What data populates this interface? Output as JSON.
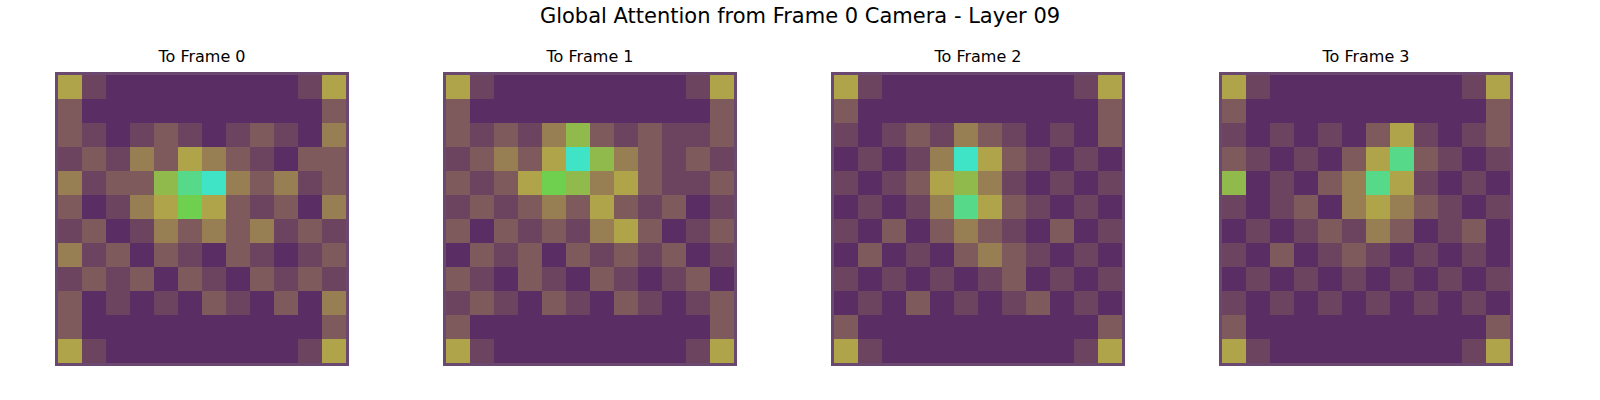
{
  "chart_data": {
    "type": "heatmap",
    "title": "Global Attention from Frame 0 Camera - Layer 09",
    "tick_labels": false,
    "panels": [
      {
        "title": "To Frame 0",
        "cells": [
          [
            0.5,
            0.2,
            0.1,
            0.1,
            0.1,
            0.1,
            0.1,
            0.1,
            0.1,
            0.1,
            0.2,
            0.5
          ],
          [
            0.3,
            0.1,
            0.1,
            0.1,
            0.1,
            0.1,
            0.1,
            0.1,
            0.1,
            0.1,
            0.1,
            0.3
          ],
          [
            0.3,
            0.2,
            0.1,
            0.2,
            0.3,
            0.2,
            0.1,
            0.2,
            0.3,
            0.2,
            0.1,
            0.4
          ],
          [
            0.2,
            0.3,
            0.2,
            0.4,
            0.3,
            0.5,
            0.4,
            0.3,
            0.2,
            0.1,
            0.3,
            0.3
          ],
          [
            0.4,
            0.2,
            0.3,
            0.3,
            0.6,
            0.8,
            0.9,
            0.4,
            0.3,
            0.4,
            0.2,
            0.3
          ],
          [
            0.3,
            0.1,
            0.2,
            0.4,
            0.5,
            0.7,
            0.5,
            0.3,
            0.2,
            0.3,
            0.1,
            0.4
          ],
          [
            0.2,
            0.3,
            0.1,
            0.2,
            0.4,
            0.3,
            0.4,
            0.3,
            0.4,
            0.2,
            0.3,
            0.2
          ],
          [
            0.4,
            0.2,
            0.3,
            0.1,
            0.3,
            0.2,
            0.1,
            0.3,
            0.2,
            0.1,
            0.2,
            0.3
          ],
          [
            0.2,
            0.3,
            0.2,
            0.3,
            0.1,
            0.3,
            0.2,
            0.1,
            0.3,
            0.2,
            0.3,
            0.2
          ],
          [
            0.3,
            0.1,
            0.2,
            0.1,
            0.2,
            0.1,
            0.3,
            0.2,
            0.1,
            0.3,
            0.1,
            0.4
          ],
          [
            0.3,
            0.1,
            0.1,
            0.1,
            0.1,
            0.1,
            0.1,
            0.1,
            0.1,
            0.1,
            0.1,
            0.3
          ],
          [
            0.5,
            0.2,
            0.1,
            0.1,
            0.1,
            0.1,
            0.1,
            0.1,
            0.1,
            0.1,
            0.2,
            0.5
          ]
        ]
      },
      {
        "title": "To Frame 1",
        "cells": [
          [
            0.5,
            0.2,
            0.1,
            0.1,
            0.1,
            0.1,
            0.1,
            0.1,
            0.1,
            0.1,
            0.2,
            0.5
          ],
          [
            0.3,
            0.1,
            0.1,
            0.1,
            0.1,
            0.1,
            0.1,
            0.1,
            0.1,
            0.1,
            0.1,
            0.3
          ],
          [
            0.3,
            0.2,
            0.3,
            0.2,
            0.4,
            0.6,
            0.3,
            0.2,
            0.3,
            0.2,
            0.2,
            0.3
          ],
          [
            0.2,
            0.3,
            0.4,
            0.3,
            0.5,
            0.9,
            0.6,
            0.4,
            0.3,
            0.2,
            0.3,
            0.2
          ],
          [
            0.3,
            0.2,
            0.3,
            0.5,
            0.7,
            0.6,
            0.4,
            0.5,
            0.3,
            0.2,
            0.2,
            0.3
          ],
          [
            0.2,
            0.3,
            0.2,
            0.3,
            0.4,
            0.3,
            0.5,
            0.3,
            0.2,
            0.3,
            0.1,
            0.2
          ],
          [
            0.3,
            0.1,
            0.3,
            0.2,
            0.3,
            0.2,
            0.4,
            0.5,
            0.3,
            0.1,
            0.2,
            0.3
          ],
          [
            0.1,
            0.3,
            0.2,
            0.3,
            0.1,
            0.3,
            0.2,
            0.3,
            0.2,
            0.3,
            0.1,
            0.2
          ],
          [
            0.3,
            0.2,
            0.1,
            0.3,
            0.2,
            0.1,
            0.3,
            0.2,
            0.1,
            0.2,
            0.3,
            0.1
          ],
          [
            0.2,
            0.3,
            0.2,
            0.1,
            0.3,
            0.2,
            0.1,
            0.3,
            0.2,
            0.1,
            0.2,
            0.3
          ],
          [
            0.3,
            0.1,
            0.1,
            0.1,
            0.1,
            0.1,
            0.1,
            0.1,
            0.1,
            0.1,
            0.1,
            0.3
          ],
          [
            0.5,
            0.2,
            0.1,
            0.1,
            0.1,
            0.1,
            0.1,
            0.1,
            0.1,
            0.1,
            0.2,
            0.5
          ]
        ]
      },
      {
        "title": "To Frame 2",
        "cells": [
          [
            0.5,
            0.2,
            0.1,
            0.1,
            0.1,
            0.1,
            0.1,
            0.1,
            0.1,
            0.1,
            0.2,
            0.5
          ],
          [
            0.3,
            0.1,
            0.1,
            0.1,
            0.1,
            0.1,
            0.1,
            0.1,
            0.1,
            0.1,
            0.1,
            0.3
          ],
          [
            0.2,
            0.1,
            0.2,
            0.3,
            0.2,
            0.4,
            0.3,
            0.2,
            0.1,
            0.2,
            0.1,
            0.3
          ],
          [
            0.1,
            0.2,
            0.1,
            0.2,
            0.4,
            0.9,
            0.5,
            0.3,
            0.2,
            0.1,
            0.2,
            0.1
          ],
          [
            0.2,
            0.1,
            0.2,
            0.3,
            0.5,
            0.6,
            0.4,
            0.2,
            0.1,
            0.2,
            0.1,
            0.2
          ],
          [
            0.1,
            0.2,
            0.1,
            0.2,
            0.4,
            0.8,
            0.5,
            0.3,
            0.2,
            0.1,
            0.2,
            0.1
          ],
          [
            0.2,
            0.1,
            0.3,
            0.1,
            0.3,
            0.4,
            0.3,
            0.2,
            0.1,
            0.3,
            0.1,
            0.2
          ],
          [
            0.1,
            0.3,
            0.1,
            0.2,
            0.1,
            0.3,
            0.4,
            0.3,
            0.2,
            0.1,
            0.2,
            0.1
          ],
          [
            0.2,
            0.1,
            0.2,
            0.1,
            0.2,
            0.1,
            0.2,
            0.3,
            0.1,
            0.2,
            0.1,
            0.2
          ],
          [
            0.1,
            0.2,
            0.1,
            0.3,
            0.1,
            0.2,
            0.1,
            0.2,
            0.3,
            0.1,
            0.2,
            0.1
          ],
          [
            0.3,
            0.1,
            0.1,
            0.1,
            0.1,
            0.1,
            0.1,
            0.1,
            0.1,
            0.1,
            0.1,
            0.3
          ],
          [
            0.5,
            0.2,
            0.1,
            0.1,
            0.1,
            0.1,
            0.1,
            0.1,
            0.1,
            0.1,
            0.2,
            0.5
          ]
        ]
      },
      {
        "title": "To Frame 3",
        "cells": [
          [
            0.5,
            0.2,
            0.1,
            0.1,
            0.1,
            0.1,
            0.1,
            0.1,
            0.1,
            0.1,
            0.2,
            0.5
          ],
          [
            0.3,
            0.1,
            0.1,
            0.1,
            0.1,
            0.1,
            0.1,
            0.1,
            0.1,
            0.1,
            0.1,
            0.3
          ],
          [
            0.2,
            0.1,
            0.2,
            0.1,
            0.2,
            0.1,
            0.3,
            0.5,
            0.2,
            0.1,
            0.2,
            0.3
          ],
          [
            0.3,
            0.2,
            0.1,
            0.2,
            0.1,
            0.3,
            0.5,
            0.8,
            0.3,
            0.2,
            0.1,
            0.2
          ],
          [
            0.6,
            0.1,
            0.2,
            0.1,
            0.3,
            0.4,
            0.8,
            0.5,
            0.2,
            0.1,
            0.2,
            0.1
          ],
          [
            0.2,
            0.1,
            0.2,
            0.3,
            0.1,
            0.4,
            0.5,
            0.4,
            0.3,
            0.2,
            0.1,
            0.2
          ],
          [
            0.1,
            0.2,
            0.1,
            0.2,
            0.3,
            0.2,
            0.4,
            0.3,
            0.1,
            0.2,
            0.3,
            0.1
          ],
          [
            0.2,
            0.1,
            0.3,
            0.1,
            0.2,
            0.3,
            0.2,
            0.1,
            0.2,
            0.1,
            0.2,
            0.1
          ],
          [
            0.1,
            0.2,
            0.1,
            0.2,
            0.1,
            0.2,
            0.1,
            0.2,
            0.1,
            0.2,
            0.1,
            0.2
          ],
          [
            0.2,
            0.1,
            0.2,
            0.1,
            0.2,
            0.1,
            0.2,
            0.1,
            0.2,
            0.1,
            0.2,
            0.1
          ],
          [
            0.3,
            0.1,
            0.1,
            0.1,
            0.1,
            0.1,
            0.1,
            0.1,
            0.1,
            0.1,
            0.1,
            0.3
          ],
          [
            0.5,
            0.2,
            0.1,
            0.1,
            0.1,
            0.1,
            0.1,
            0.1,
            0.1,
            0.1,
            0.2,
            0.5
          ]
        ]
      }
    ]
  }
}
